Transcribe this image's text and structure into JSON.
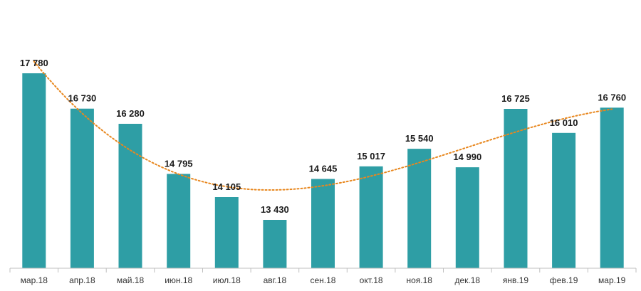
{
  "chart_data": {
    "type": "bar",
    "categories": [
      "мар.18",
      "апр.18",
      "май.18",
      "июн.18",
      "июл.18",
      "авг.18",
      "сен.18",
      "окт.18",
      "ноя.18",
      "дек.18",
      "янв.19",
      "фев.19",
      "мар.19"
    ],
    "values": [
      17780,
      16730,
      16280,
      14795,
      14105,
      13430,
      14645,
      15017,
      15540,
      14990,
      16725,
      16010,
      16760
    ],
    "value_labels": [
      "17 780",
      "16 730",
      "16 280",
      "14 795",
      "14 105",
      "13 430",
      "14 645",
      "15 017",
      "15 540",
      "14 990",
      "16 725",
      "16 010",
      "16 760"
    ],
    "trendline": {
      "style": "dotted",
      "kind": "polynomial"
    },
    "ylim": [
      11800,
      18700
    ],
    "grid": false,
    "legend": "none",
    "colors": {
      "bar": "#2E9EA5",
      "trend": "#E8871E",
      "axis": "#BFBFBF"
    }
  }
}
